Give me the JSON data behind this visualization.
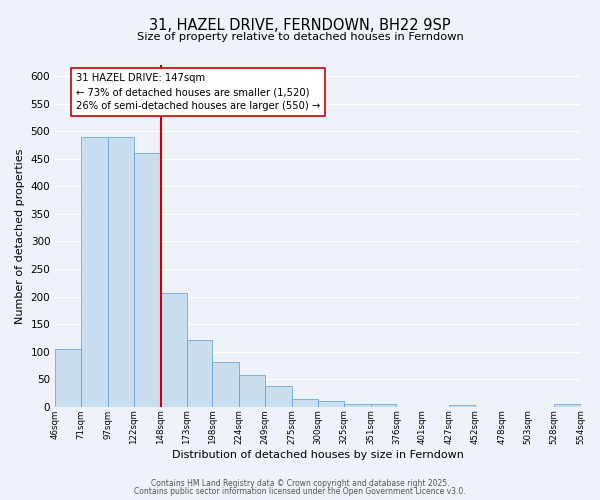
{
  "title": "31, HAZEL DRIVE, FERNDOWN, BH22 9SP",
  "subtitle": "Size of property relative to detached houses in Ferndown",
  "xlabel": "Distribution of detached houses by size in Ferndown",
  "ylabel": "Number of detached properties",
  "bin_edges": [
    46,
    71,
    97,
    122,
    148,
    173,
    198,
    224,
    249,
    275,
    300,
    325,
    351,
    376,
    401,
    427,
    452,
    478,
    503,
    528,
    554
  ],
  "bin_labels": [
    "46sqm",
    "71sqm",
    "97sqm",
    "122sqm",
    "148sqm",
    "173sqm",
    "198sqm",
    "224sqm",
    "249sqm",
    "275sqm",
    "300sqm",
    "325sqm",
    "351sqm",
    "376sqm",
    "401sqm",
    "427sqm",
    "452sqm",
    "478sqm",
    "503sqm",
    "528sqm",
    "554sqm"
  ],
  "bar_heights": [
    105,
    490,
    490,
    460,
    207,
    122,
    82,
    57,
    37,
    15,
    10,
    5,
    5,
    0,
    0,
    3,
    0,
    0,
    0,
    5
  ],
  "bar_color": "#c9dff0",
  "bar_edge_color": "#5b9bd5",
  "property_line_x": 148,
  "property_line_color": "#cc0000",
  "annotation_title": "31 HAZEL DRIVE: 147sqm",
  "annotation_line1": "← 73% of detached houses are smaller (1,520)",
  "annotation_line2": "26% of semi-detached houses are larger (550) →",
  "annotation_box_color": "#ffffff",
  "annotation_box_edge": "#cc0000",
  "ylim": [
    0,
    620
  ],
  "yticks": [
    0,
    50,
    100,
    150,
    200,
    250,
    300,
    350,
    400,
    450,
    500,
    550,
    600
  ],
  "background_color": "#eef2f9",
  "grid_color": "#ffffff",
  "footer1": "Contains HM Land Registry data © Crown copyright and database right 2025.",
  "footer2": "Contains public sector information licensed under the Open Government Licence v3.0."
}
